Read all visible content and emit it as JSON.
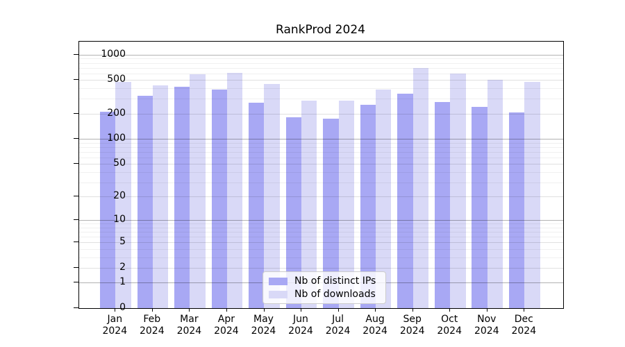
{
  "chart_data": {
    "type": "bar",
    "title": "RankProd 2024",
    "categories": [
      "Jan 2024",
      "Feb 2024",
      "Mar 2024",
      "Apr 2024",
      "May 2024",
      "Jun 2024",
      "Jul 2024",
      "Aug 2024",
      "Sep 2024",
      "Oct 2024",
      "Nov 2024",
      "Dec 2024"
    ],
    "series": [
      {
        "name": "Nb of distinct IPs",
        "color": "#a8a8f4",
        "values": [
          210,
          325,
          415,
          385,
          270,
          181,
          174,
          253,
          348,
          276,
          240,
          205
        ]
      },
      {
        "name": "Nb of downloads",
        "color": "#d9d9f7",
        "values": [
          477,
          434,
          590,
          610,
          451,
          288,
          288,
          388,
          696,
          595,
          502,
          477
        ]
      }
    ],
    "xlabel": "",
    "ylabel": "",
    "yscale": "log1p",
    "yticks": [
      0,
      1,
      2,
      5,
      10,
      20,
      50,
      100,
      200,
      500,
      1000
    ],
    "ylim": [
      0,
      1430
    ],
    "grid": true,
    "legend_position": "inside lower center"
  }
}
